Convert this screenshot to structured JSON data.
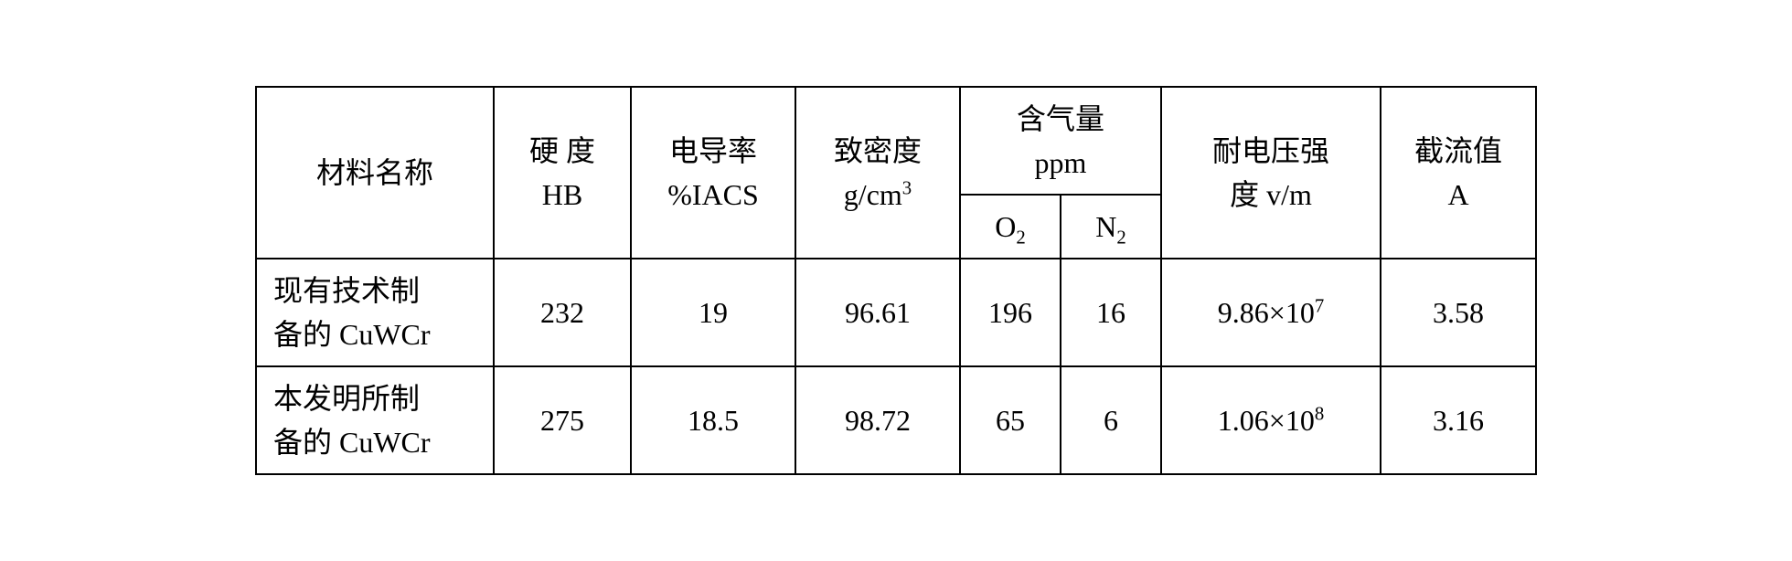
{
  "table": {
    "background_color": "#ffffff",
    "border_color": "#000000",
    "border_width": 2,
    "text_color": "#000000",
    "font_family": "SimSun",
    "header_fontsize": 32,
    "cell_fontsize": 32,
    "headers": {
      "material_name": "材料名称",
      "hardness_line1": "硬  度",
      "hardness_line2": "HB",
      "conductivity_line1": "电导率",
      "conductivity_line2_prefix": "%IACS",
      "density_line1": "致密度",
      "density_line2_prefix": "g/cm",
      "density_line2_sup": "3",
      "gas_content_line1": "含气量",
      "gas_content_line2": "ppm",
      "gas_o2_base": "O",
      "gas_o2_sub": "2",
      "gas_n2_base": "N",
      "gas_n2_sub": "2",
      "voltage_line1": "耐电压强",
      "voltage_line2": "度 v/m",
      "current_line1": "截流值",
      "current_line2": "A"
    },
    "rows": [
      {
        "name_line1": "现有技术制",
        "name_line2": "备的 CuWCr",
        "hardness": "232",
        "conductivity": "19",
        "density": "96.61",
        "o2": "196",
        "n2": "16",
        "voltage_base": "9.86×10",
        "voltage_sup": "7",
        "current": "3.58"
      },
      {
        "name_line1": "本发明所制",
        "name_line2": "备的 CuWCr",
        "hardness": "275",
        "conductivity": "18.5",
        "density": "98.72",
        "o2": "65",
        "n2": "6",
        "voltage_base": "1.06×10",
        "voltage_sup": "8",
        "current": "3.16"
      }
    ]
  }
}
